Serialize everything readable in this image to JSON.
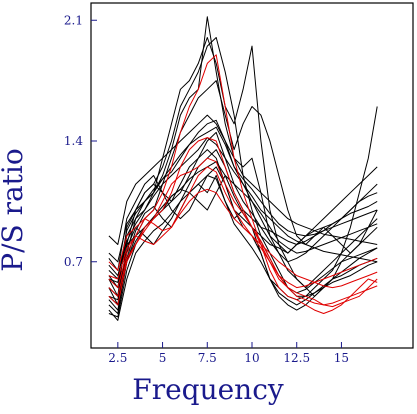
{
  "chart_data": {
    "type": "line",
    "title": "",
    "xlabel": "Frequency",
    "ylabel": "P/S ratio",
    "xlim": [
      1.0,
      19.0
    ],
    "ylim": [
      0.2,
      2.2
    ],
    "x_ticks": [
      2.5,
      5,
      7.5,
      10,
      12.5,
      15
    ],
    "x_tick_labels": [
      "2.5",
      "5",
      "7.5",
      "10",
      "12.5",
      "15"
    ],
    "y_ticks": [
      0.7,
      1.4,
      2.1
    ],
    "y_tick_labels": [
      "0.7",
      "1.4",
      "2.1"
    ],
    "grid": false,
    "legend": "none",
    "colors": {
      "series_black": "#000000",
      "series_red": "#e00000",
      "axis_text": "#1a1a8c",
      "frame": "#000000"
    },
    "x": [
      2.0,
      2.5,
      3.0,
      3.5,
      4.0,
      4.5,
      5.0,
      5.5,
      6.0,
      6.5,
      7.0,
      7.5,
      8.0,
      8.5,
      9.0,
      9.5,
      10.0,
      10.5,
      11.0,
      11.5,
      12.0,
      12.5,
      13.0,
      13.5,
      14.0,
      14.5,
      15.0,
      15.5,
      16.0,
      16.5,
      17.0
    ],
    "series": [
      {
        "color": "black",
        "values": [
          0.55,
          0.45,
          0.8,
          1.0,
          1.1,
          1.15,
          1.25,
          1.4,
          1.6,
          1.7,
          1.8,
          1.95,
          2.0,
          1.8,
          1.55,
          1.2,
          1.0,
          0.85,
          0.75,
          0.65,
          0.55,
          0.5,
          0.5,
          0.55,
          0.6,
          0.65,
          0.75,
          0.9,
          1.1,
          1.3,
          1.6
        ]
      },
      {
        "color": "black",
        "values": [
          0.5,
          0.48,
          0.75,
          0.95,
          1.0,
          1.1,
          1.2,
          1.35,
          1.55,
          1.65,
          1.7,
          2.12,
          1.8,
          1.5,
          1.3,
          1.25,
          1.3,
          1.1,
          0.85,
          0.75,
          0.65,
          0.6,
          0.55,
          0.5,
          0.55,
          0.6,
          0.7,
          0.75,
          0.8,
          0.85,
          0.9
        ]
      },
      {
        "color": "black",
        "values": [
          0.6,
          0.5,
          0.9,
          1.0,
          1.05,
          1.1,
          1.3,
          1.5,
          1.7,
          1.75,
          1.85,
          2.0,
          1.85,
          1.6,
          1.5,
          1.7,
          1.95,
          1.4,
          1.0,
          0.8,
          0.7,
          0.6,
          0.55,
          0.6,
          0.65,
          0.7,
          0.75,
          0.8,
          0.85,
          0.9,
          0.95
        ]
      },
      {
        "color": "black",
        "values": [
          0.45,
          0.4,
          0.7,
          0.85,
          0.95,
          1.0,
          1.15,
          1.3,
          1.45,
          1.55,
          1.65,
          1.7,
          1.75,
          1.55,
          1.35,
          1.5,
          1.6,
          1.55,
          1.4,
          1.2,
          1.0,
          0.85,
          0.8,
          0.85,
          0.9,
          0.85,
          0.8,
          0.75,
          0.8,
          0.9,
          1.0
        ]
      },
      {
        "color": "black",
        "values": [
          0.62,
          0.55,
          0.85,
          0.95,
          1.05,
          1.12,
          1.18,
          1.22,
          1.3,
          1.38,
          1.45,
          1.5,
          1.52,
          1.4,
          1.25,
          1.15,
          1.05,
          0.95,
          0.85,
          0.8,
          0.75,
          0.8,
          0.85,
          0.9,
          0.95,
          1.0,
          1.05,
          1.1,
          1.15,
          1.2,
          1.25
        ]
      },
      {
        "color": "black",
        "values": [
          0.72,
          0.65,
          0.95,
          1.05,
          1.15,
          1.2,
          1.1,
          1.0,
          0.95,
          1.0,
          1.1,
          1.2,
          1.25,
          1.15,
          1.0,
          0.95,
          0.9,
          0.85,
          0.8,
          0.78,
          0.75,
          0.8,
          0.85,
          0.88,
          0.9,
          0.92,
          0.95,
          0.98,
          1.0,
          1.02,
          1.05
        ]
      },
      {
        "color": "black",
        "values": [
          0.85,
          0.8,
          1.05,
          1.15,
          1.2,
          1.25,
          1.3,
          1.35,
          1.4,
          1.45,
          1.5,
          1.55,
          1.5,
          1.4,
          1.3,
          1.2,
          1.15,
          1.1,
          1.05,
          1.0,
          0.95,
          0.92,
          0.9,
          0.88,
          0.86,
          0.85,
          0.84,
          0.83,
          0.82,
          0.81,
          0.8
        ]
      },
      {
        "color": "black",
        "values": [
          0.4,
          0.38,
          0.65,
          0.8,
          0.9,
          0.95,
          1.0,
          1.05,
          1.15,
          1.25,
          1.3,
          1.35,
          1.3,
          1.15,
          1.0,
          0.9,
          0.85,
          0.75,
          0.6,
          0.5,
          0.45,
          0.42,
          0.45,
          0.5,
          0.55,
          0.6,
          0.62,
          0.65,
          0.68,
          0.7,
          0.72
        ]
      },
      {
        "color": "black",
        "values": [
          0.5,
          0.45,
          0.72,
          0.88,
          0.98,
          1.02,
          0.95,
          0.9,
          1.0,
          1.1,
          1.15,
          1.1,
          1.2,
          1.05,
          0.95,
          1.0,
          0.9,
          0.75,
          0.6,
          0.55,
          0.5,
          0.48,
          0.5,
          0.52,
          0.55,
          0.58,
          0.6,
          0.62,
          0.65,
          0.68,
          0.7
        ]
      },
      {
        "color": "black",
        "values": [
          0.68,
          0.62,
          0.82,
          0.92,
          1.0,
          1.08,
          1.15,
          1.2,
          1.25,
          1.3,
          1.35,
          1.42,
          1.38,
          1.3,
          1.22,
          1.15,
          1.08,
          1.0,
          0.95,
          0.9,
          0.85,
          0.82,
          0.8,
          0.78,
          0.76,
          0.75,
          0.74,
          0.73,
          0.72,
          0.71,
          0.7
        ]
      },
      {
        "color": "black",
        "values": [
          0.55,
          0.5,
          0.78,
          0.9,
          0.85,
          0.8,
          0.88,
          0.95,
          1.05,
          1.15,
          1.25,
          1.3,
          1.35,
          1.25,
          1.1,
          1.0,
          0.95,
          0.9,
          0.88,
          0.85,
          0.82,
          0.8,
          0.82,
          0.85,
          0.88,
          0.92,
          0.95,
          1.0,
          1.05,
          1.1,
          1.15
        ]
      },
      {
        "color": "black",
        "values": [
          0.42,
          0.36,
          0.6,
          0.75,
          0.82,
          0.88,
          0.92,
          0.98,
          1.05,
          1.1,
          1.15,
          1.2,
          1.18,
          1.05,
          0.92,
          0.85,
          0.78,
          0.7,
          0.6,
          0.52,
          0.48,
          0.45,
          0.48,
          0.52,
          0.56,
          0.6,
          0.64,
          0.68,
          0.72,
          0.75,
          0.78
        ]
      },
      {
        "color": "black",
        "values": [
          0.6,
          0.58,
          0.8,
          0.85,
          0.9,
          0.95,
          1.0,
          1.08,
          1.12,
          1.1,
          1.05,
          1.0,
          1.1,
          1.2,
          1.15,
          1.05,
          0.98,
          0.9,
          0.82,
          0.75,
          0.7,
          0.72,
          0.75,
          0.8,
          0.85,
          0.9,
          0.95,
          1.0,
          1.05,
          1.08,
          1.1
        ]
      },
      {
        "color": "black",
        "values": [
          0.75,
          0.7,
          0.92,
          1.0,
          1.1,
          1.15,
          1.1,
          1.05,
          1.1,
          1.2,
          1.3,
          1.4,
          1.45,
          1.3,
          1.15,
          1.1,
          1.05,
          0.98,
          0.9,
          0.82,
          0.78,
          0.75,
          0.76,
          0.78,
          0.8,
          0.82,
          0.84,
          0.86,
          0.88,
          0.9,
          0.92
        ]
      },
      {
        "color": "black",
        "values": [
          0.48,
          0.42,
          0.7,
          0.82,
          0.9,
          0.96,
          1.02,
          1.08,
          1.12,
          1.18,
          1.22,
          1.25,
          1.28,
          1.2,
          1.08,
          0.98,
          0.9,
          0.82,
          0.72,
          0.62,
          0.55,
          0.52,
          0.54,
          0.58,
          0.62,
          0.66,
          0.7,
          0.72,
          0.74,
          0.76,
          0.78
        ]
      },
      {
        "color": "black",
        "values": [
          0.65,
          0.6,
          0.88,
          0.98,
          1.05,
          1.1,
          1.18,
          1.25,
          1.32,
          1.38,
          1.42,
          1.45,
          1.48,
          1.38,
          1.25,
          1.18,
          1.12,
          1.05,
          0.98,
          0.92,
          0.88,
          0.86,
          0.85,
          0.86,
          0.88,
          0.9,
          0.92,
          0.94,
          0.96,
          0.98,
          1.0
        ]
      },
      {
        "color": "red",
        "values": [
          0.6,
          0.55,
          0.75,
          0.85,
          0.95,
          1.0,
          1.1,
          1.25,
          1.45,
          1.6,
          1.7,
          1.85,
          1.9,
          1.6,
          1.3,
          1.1,
          0.95,
          0.8,
          0.65,
          0.55,
          0.5,
          0.48,
          0.45,
          0.42,
          0.4,
          0.42,
          0.45,
          0.5,
          0.55,
          0.6,
          0.58
        ]
      },
      {
        "color": "red",
        "values": [
          0.5,
          0.45,
          0.7,
          0.8,
          0.9,
          0.95,
          1.0,
          1.1,
          1.25,
          1.35,
          1.4,
          1.42,
          1.4,
          1.25,
          1.1,
          1.0,
          0.9,
          0.8,
          0.7,
          0.6,
          0.55,
          0.52,
          0.5,
          0.48,
          0.45,
          0.44,
          0.46,
          0.48,
          0.5,
          0.55,
          0.6
        ]
      },
      {
        "color": "red",
        "values": [
          0.7,
          0.65,
          0.85,
          0.9,
          0.95,
          0.92,
          0.88,
          0.9,
          1.0,
          1.1,
          1.2,
          1.25,
          1.22,
          1.1,
          1.0,
          0.92,
          0.85,
          0.78,
          0.7,
          0.62,
          0.58,
          0.55,
          0.56,
          0.58,
          0.6,
          0.62,
          0.64,
          0.66,
          0.68,
          0.7,
          0.72
        ]
      },
      {
        "color": "red",
        "values": [
          0.55,
          0.5,
          0.72,
          0.8,
          0.88,
          0.95,
          1.05,
          1.15,
          1.2,
          1.22,
          1.25,
          1.3,
          1.28,
          1.15,
          1.05,
          0.98,
          0.9,
          0.82,
          0.72,
          0.62,
          0.55,
          0.5,
          0.48,
          0.46,
          0.45,
          0.46,
          0.48,
          0.5,
          0.52,
          0.54,
          0.56
        ]
      },
      {
        "color": "red",
        "values": [
          0.62,
          0.6,
          0.78,
          0.85,
          0.82,
          0.8,
          0.85,
          0.9,
          0.98,
          1.05,
          1.1,
          1.12,
          1.1,
          1.02,
          0.95,
          0.9,
          0.85,
          0.8,
          0.75,
          0.7,
          0.66,
          0.62,
          0.6,
          0.58,
          0.56,
          0.55,
          0.56,
          0.58,
          0.6,
          0.62,
          0.64
        ]
      }
    ]
  }
}
